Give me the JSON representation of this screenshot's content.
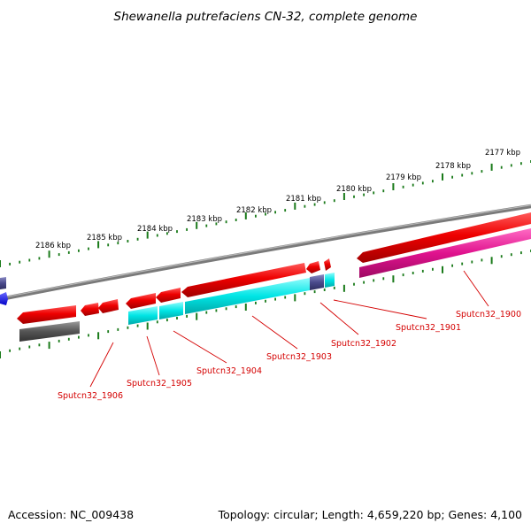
{
  "title": "Shewanella putrefaciens CN-32, complete genome",
  "footer": {
    "accession": "Accession: NC_009438",
    "summary": "Topology: circular; Length: 4,659,220 bp; Genes: 4,100"
  },
  "kbp_labels": [
    "2177 kbp",
    "2178 kbp",
    "2179 kbp",
    "2180 kbp",
    "2181 kbp",
    "2182 kbp",
    "2183 kbp",
    "2184 kbp",
    "2185 kbp",
    "2186 kbp"
  ],
  "gene_labels": [
    "Sputcn32_1900",
    "Sputcn32_1901",
    "Sputcn32_1902",
    "Sputcn32_1903",
    "Sputcn32_1904",
    "Sputcn32_1905",
    "Sputcn32_1906"
  ],
  "colors": {
    "forward_cds": "#ee0000",
    "reverse_cds": "#00e5e5",
    "pink_feature": "#e0128e",
    "gray_feature": "#555555",
    "slate_feature": "#4a4a8c",
    "blue_feature": "#1a1aee",
    "backbone": "#808080",
    "ticks": "#1a7a1a",
    "label_text": "#d40000"
  }
}
